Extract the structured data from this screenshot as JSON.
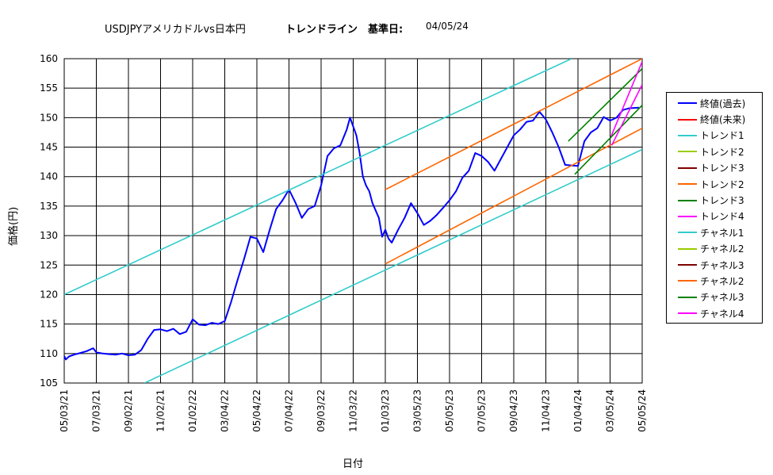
{
  "title": {
    "main": "USDJPYアメリカドルvs日本円",
    "bold": "トレンドライン　基準日:",
    "date": "04/05/24"
  },
  "chart_data": {
    "type": "line",
    "title": "USDJPYアメリカドルvs日本円　トレンドライン　基準日: 04/05/24",
    "xlabel": "日付",
    "ylabel": "価格(円)",
    "ylim": [
      105,
      160
    ],
    "yticks": [
      105,
      110,
      115,
      120,
      125,
      130,
      135,
      140,
      145,
      150,
      155,
      160
    ],
    "xticks": [
      "05/03/21",
      "07/03/21",
      "09/02/21",
      "11/02/21",
      "01/02/22",
      "03/04/22",
      "05/04/22",
      "07/04/22",
      "09/03/22",
      "11/03/22",
      "01/03/23",
      "03/05/23",
      "05/05/23",
      "07/05/23",
      "09/04/23",
      "11/04/23",
      "01/04/24",
      "03/05/24",
      "05/05/24"
    ],
    "grid": true,
    "legend_position": "right",
    "series": [
      {
        "name": "終値(過去)",
        "color": "#0000ff",
        "points": [
          [
            0.0,
            109.6
          ],
          [
            0.05,
            109.0
          ],
          [
            0.15,
            109.5
          ],
          [
            0.3,
            109.8
          ],
          [
            0.5,
            110.1
          ],
          [
            0.7,
            110.4
          ],
          [
            0.9,
            110.9
          ],
          [
            1.0,
            110.2
          ],
          [
            1.2,
            110.0
          ],
          [
            1.4,
            109.9
          ],
          [
            1.6,
            109.8
          ],
          [
            1.8,
            110.0
          ],
          [
            2.0,
            109.7
          ],
          [
            2.2,
            109.8
          ],
          [
            2.4,
            110.6
          ],
          [
            2.6,
            112.5
          ],
          [
            2.8,
            114.0
          ],
          [
            3.0,
            114.1
          ],
          [
            3.2,
            113.8
          ],
          [
            3.4,
            114.2
          ],
          [
            3.6,
            113.3
          ],
          [
            3.8,
            113.7
          ],
          [
            4.0,
            115.8
          ],
          [
            4.2,
            114.9
          ],
          [
            4.4,
            114.8
          ],
          [
            4.6,
            115.2
          ],
          [
            4.8,
            115.0
          ],
          [
            5.0,
            115.5
          ],
          [
            5.2,
            118.8
          ],
          [
            5.4,
            122.5
          ],
          [
            5.6,
            126.0
          ],
          [
            5.8,
            129.8
          ],
          [
            6.0,
            129.5
          ],
          [
            6.2,
            127.2
          ],
          [
            6.4,
            131.0
          ],
          [
            6.6,
            134.5
          ],
          [
            6.8,
            136.0
          ],
          [
            7.0,
            137.8
          ],
          [
            7.2,
            135.6
          ],
          [
            7.4,
            133.0
          ],
          [
            7.6,
            134.5
          ],
          [
            7.8,
            135.0
          ],
          [
            8.0,
            138.5
          ],
          [
            8.2,
            143.5
          ],
          [
            8.4,
            144.8
          ],
          [
            8.6,
            145.3
          ],
          [
            8.8,
            148.0
          ],
          [
            8.9,
            150.0
          ],
          [
            9.0,
            148.5
          ],
          [
            9.1,
            147.0
          ],
          [
            9.2,
            144.0
          ],
          [
            9.3,
            140.0
          ],
          [
            9.4,
            138.5
          ],
          [
            9.5,
            137.5
          ],
          [
            9.6,
            135.5
          ],
          [
            9.8,
            133.0
          ],
          [
            9.9,
            129.8
          ],
          [
            10.0,
            131.0
          ],
          [
            10.1,
            129.5
          ],
          [
            10.2,
            128.8
          ],
          [
            10.4,
            131.0
          ],
          [
            10.6,
            133.0
          ],
          [
            10.8,
            135.5
          ],
          [
            11.0,
            133.8
          ],
          [
            11.2,
            131.8
          ],
          [
            11.4,
            132.5
          ],
          [
            11.6,
            133.5
          ],
          [
            11.8,
            134.7
          ],
          [
            12.0,
            136.0
          ],
          [
            12.2,
            137.5
          ],
          [
            12.4,
            139.8
          ],
          [
            12.6,
            141.0
          ],
          [
            12.8,
            144.0
          ],
          [
            13.0,
            143.5
          ],
          [
            13.2,
            142.5
          ],
          [
            13.4,
            141.0
          ],
          [
            13.6,
            143.0
          ],
          [
            13.8,
            145.0
          ],
          [
            14.0,
            147.0
          ],
          [
            14.2,
            148.0
          ],
          [
            14.4,
            149.3
          ],
          [
            14.6,
            149.5
          ],
          [
            14.8,
            151.0
          ],
          [
            15.0,
            149.7
          ],
          [
            15.2,
            147.5
          ],
          [
            15.4,
            145.0
          ],
          [
            15.6,
            142.0
          ],
          [
            15.8,
            141.9
          ],
          [
            16.0,
            141.8
          ],
          [
            16.2,
            146.0
          ],
          [
            16.4,
            147.5
          ],
          [
            16.6,
            148.2
          ],
          [
            16.8,
            150.1
          ],
          [
            17.0,
            149.5
          ],
          [
            17.2,
            150.0
          ],
          [
            17.4,
            151.3
          ],
          [
            17.6,
            151.6
          ],
          [
            17.9,
            151.7
          ]
        ]
      },
      {
        "name": "終値(未来)",
        "color": "#ff0000",
        "points": []
      },
      {
        "name": "トレンド1",
        "color": "#33cccc",
        "points": [
          [
            0,
            120
          ],
          [
            15.8,
            160
          ]
        ]
      },
      {
        "name": "トレンド2",
        "color": "#99cc00",
        "points": []
      },
      {
        "name": "トレンド3",
        "color": "#800000",
        "points": []
      },
      {
        "name": "トレンド2",
        "color": "#ff6600",
        "points": [
          [
            10.0,
            137.8
          ],
          [
            18.0,
            160.0
          ]
        ]
      },
      {
        "name": "トレンド3",
        "color": "#008000",
        "points": [
          [
            15.7,
            146.0
          ],
          [
            18.0,
            158.3
          ]
        ]
      },
      {
        "name": "トレンド4",
        "color": "#ff00ff",
        "points": [
          [
            17.0,
            146.4
          ],
          [
            18.0,
            159.5
          ]
        ]
      },
      {
        "name": "チャネル1",
        "color": "#33cccc",
        "points": [
          [
            2.5,
            105
          ],
          [
            18.0,
            144.6
          ]
        ]
      },
      {
        "name": "チャネル2",
        "color": "#99cc00",
        "points": []
      },
      {
        "name": "チャネル3",
        "color": "#800000",
        "points": []
      },
      {
        "name": "チャネル2",
        "color": "#ff6600",
        "points": [
          [
            10.0,
            125.2
          ],
          [
            18.0,
            148.2
          ]
        ]
      },
      {
        "name": "チャネル3",
        "color": "#008000",
        "points": [
          [
            15.9,
            140.4
          ],
          [
            18.0,
            152.1
          ]
        ]
      },
      {
        "name": "チャネル4",
        "color": "#ff00ff",
        "points": [
          [
            17.05,
            145.3
          ],
          [
            18.0,
            155.6
          ]
        ]
      }
    ]
  }
}
